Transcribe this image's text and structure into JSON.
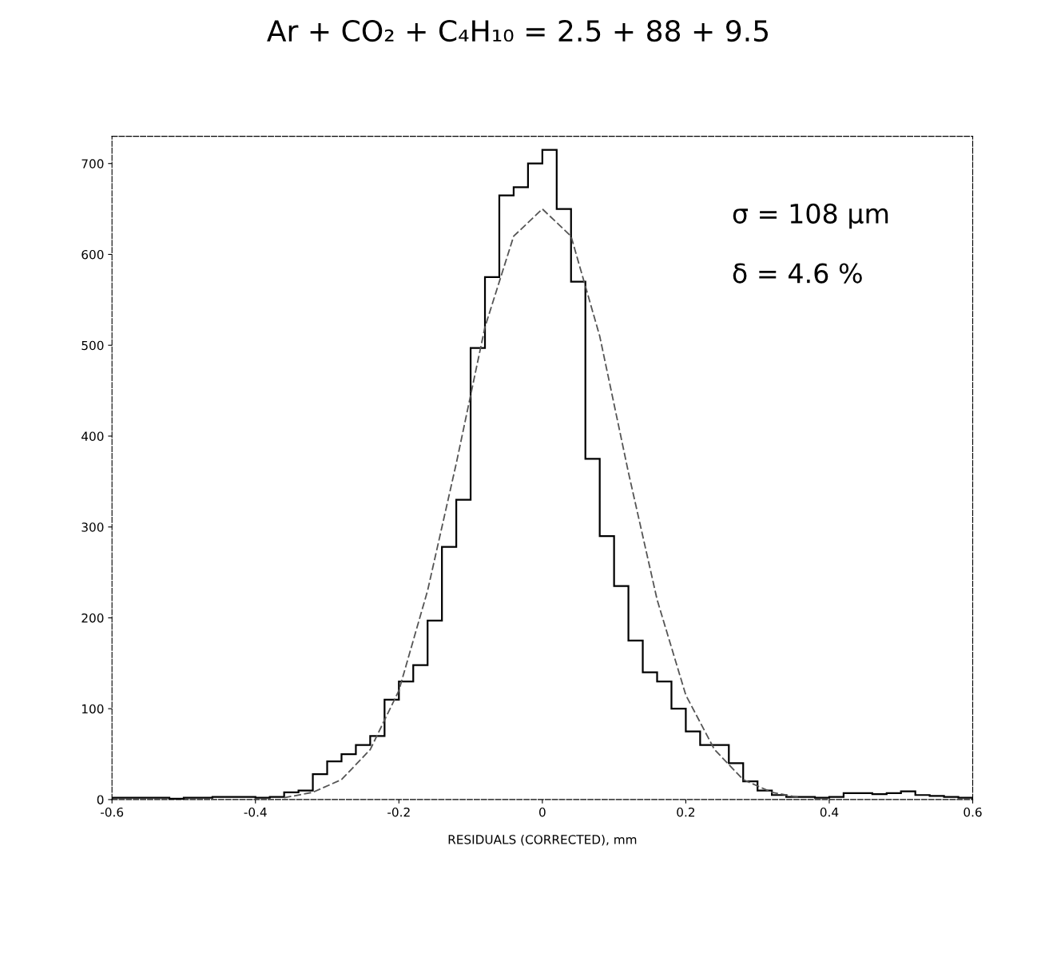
{
  "chart_data": {
    "type": "histogram",
    "title": "Ar + CO₂ + C₄H₁₀ = 2.5 + 88 + 9.5",
    "xlabel": "RESIDUALS (CORRECTED), mm",
    "xlim": [
      -0.6,
      0.6
    ],
    "ylim": [
      0,
      730
    ],
    "xticks": [
      -0.6,
      -0.4,
      -0.2,
      0,
      0.2,
      0.4,
      0.6
    ],
    "yticks": [
      0,
      100,
      200,
      300,
      400,
      500,
      600,
      700
    ],
    "grid": false,
    "color": "#000000",
    "bins": [
      -0.6,
      -0.58,
      -0.56,
      -0.54,
      -0.52,
      -0.5,
      -0.48,
      -0.46,
      -0.44,
      -0.42,
      -0.4,
      -0.38,
      -0.36,
      -0.34,
      -0.32,
      -0.3,
      -0.28,
      -0.26,
      -0.24,
      -0.22,
      -0.2,
      -0.18,
      -0.16,
      -0.14,
      -0.12,
      -0.1,
      -0.08,
      -0.06,
      -0.04,
      -0.02,
      0,
      0.02,
      0.04,
      0.06,
      0.08,
      0.1,
      0.12,
      0.14,
      0.16,
      0.18,
      0.2,
      0.22,
      0.24,
      0.26,
      0.28,
      0.3,
      0.32,
      0.34,
      0.36,
      0.38,
      0.4,
      0.42,
      0.44,
      0.46,
      0.48,
      0.5,
      0.52,
      0.54,
      0.56,
      0.58,
      0.6
    ],
    "values": [
      2,
      2,
      2,
      2,
      1,
      2,
      2,
      3,
      3,
      3,
      2,
      3,
      8,
      10,
      28,
      42,
      50,
      60,
      70,
      110,
      130,
      148,
      197,
      278,
      330,
      497,
      575,
      665,
      674,
      700,
      715,
      650,
      570,
      375,
      290,
      235,
      175,
      140,
      130,
      100,
      75,
      60,
      60,
      40,
      20,
      10,
      5,
      3,
      3,
      2,
      3,
      7,
      7,
      6,
      7,
      9,
      5,
      4,
      3,
      2
    ],
    "series": [
      {
        "type": "line",
        "color": "#555555",
        "line_style": "dashed",
        "x": [
          -0.36,
          -0.32,
          -0.28,
          -0.24,
          -0.2,
          -0.16,
          -0.12,
          -0.08,
          -0.04,
          0,
          0.04,
          0.08,
          0.12,
          0.16,
          0.2,
          0.24,
          0.28,
          0.32,
          0.36
        ],
        "values": [
          2,
          8,
          22,
          55,
          120,
          230,
          370,
          520,
          620,
          650,
          620,
          510,
          360,
          220,
          115,
          55,
          22,
          8,
          2
        ]
      }
    ],
    "annotations": [
      "σ = 108 μm",
      "δ = 4.6 %"
    ]
  }
}
